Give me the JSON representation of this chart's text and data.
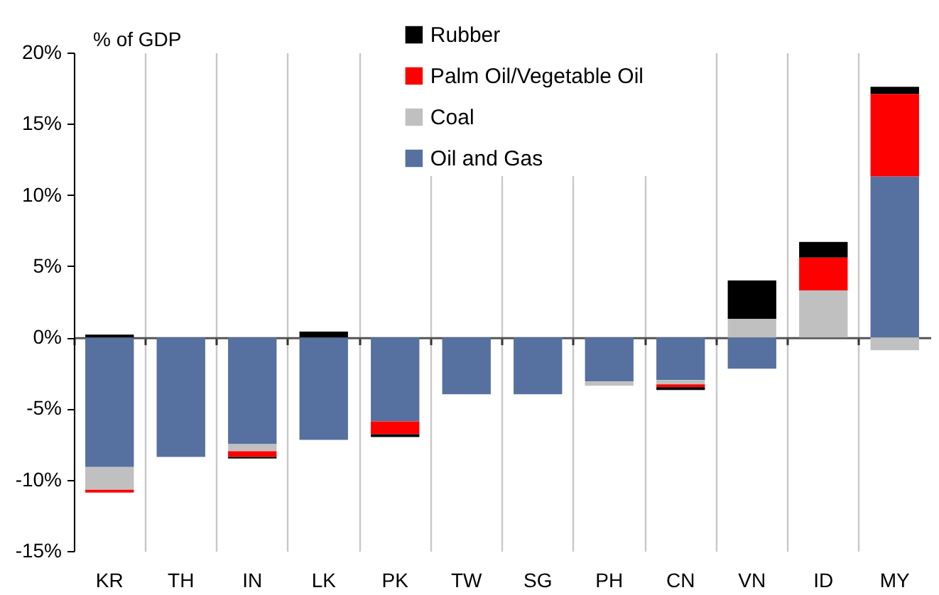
{
  "chart_data": {
    "type": "bar",
    "ylabel": "% of GDP",
    "categories": [
      "KR",
      "TH",
      "IN",
      "LK",
      "PK",
      "TW",
      "SG",
      "PH",
      "CN",
      "VN",
      "ID",
      "MY"
    ],
    "series": [
      {
        "name": "Oil and Gas",
        "color": "#56709f",
        "values": [
          -9.1,
          -8.4,
          -7.5,
          -7.2,
          -5.9,
          -4.0,
          -4.0,
          -3.1,
          -3.0,
          -2.2,
          null,
          11.3
        ]
      },
      {
        "name": "Coal",
        "color": "#c0c0c0",
        "values": [
          -1.6,
          null,
          -0.5,
          null,
          null,
          null,
          null,
          -0.3,
          -0.3,
          1.3,
          3.3,
          -0.9
        ]
      },
      {
        "name": "Palm Oil/Vegetable Oil",
        "color": "#ff0000",
        "values": [
          -0.2,
          null,
          -0.4,
          null,
          -0.9,
          null,
          null,
          null,
          -0.2,
          null,
          2.3,
          5.8
        ]
      },
      {
        "name": "Rubber",
        "color": "#000000",
        "values": [
          0.2,
          null,
          -0.1,
          0.4,
          -0.2,
          null,
          null,
          null,
          -0.2,
          2.7,
          1.1,
          0.5
        ]
      }
    ],
    "stacked": true,
    "ylim": [
      -15,
      20
    ],
    "yticks": [
      {
        "value": -15,
        "label": "-15%"
      },
      {
        "value": -10,
        "label": "-10%"
      },
      {
        "value": -5,
        "label": "-5%"
      },
      {
        "value": 0,
        "label": "0%"
      },
      {
        "value": 5,
        "label": "5%"
      },
      {
        "value": 10,
        "label": "10%"
      },
      {
        "value": 15,
        "label": "15%"
      },
      {
        "value": 20,
        "label": "20%"
      }
    ],
    "grid": "x",
    "legend": "top"
  }
}
